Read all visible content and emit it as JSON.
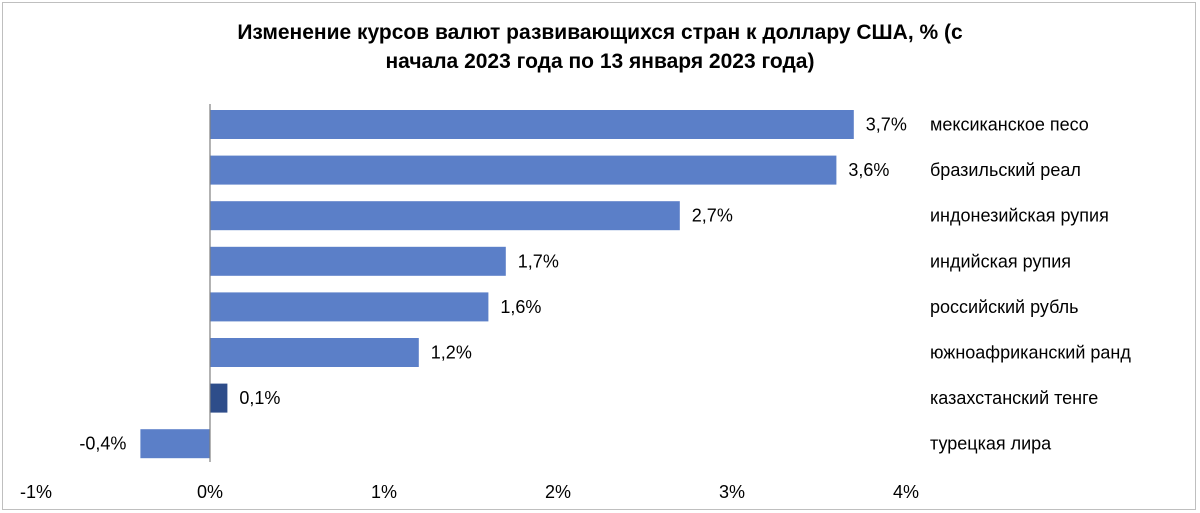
{
  "chart_data": {
    "type": "bar",
    "orientation": "horizontal",
    "title_lines": [
      "Изменение курсов валют развивающихся стран к доллару США, % (с",
      "начала 2023 года по 13 января 2023 года)"
    ],
    "categories": [
      "мексиканское песо",
      "бразильский реал",
      "индонезийская рупия",
      "индийская рупия",
      "российский рубль",
      "южноафриканский ранд",
      "казахстанский тенге",
      "турецкая лира"
    ],
    "values": [
      3.7,
      3.6,
      2.7,
      1.7,
      1.6,
      1.2,
      0.1,
      -0.4
    ],
    "value_labels": [
      "3,7%",
      "3,6%",
      "2,7%",
      "1,7%",
      "1,6%",
      "1,2%",
      "0,1%",
      "-0,4%"
    ],
    "xlim": [
      -1,
      4
    ],
    "ticks": [
      -1,
      0,
      1,
      2,
      3,
      4
    ],
    "tick_labels": [
      "-1%",
      "0%",
      "1%",
      "2%",
      "3%",
      "4%"
    ],
    "grid": false,
    "legend": "none",
    "colors": {
      "bar": "#5b7fc8",
      "highlight_bar": "#2e4d8a",
      "axis": "#808080"
    },
    "highlight_category": "казахстанский тенге"
  }
}
